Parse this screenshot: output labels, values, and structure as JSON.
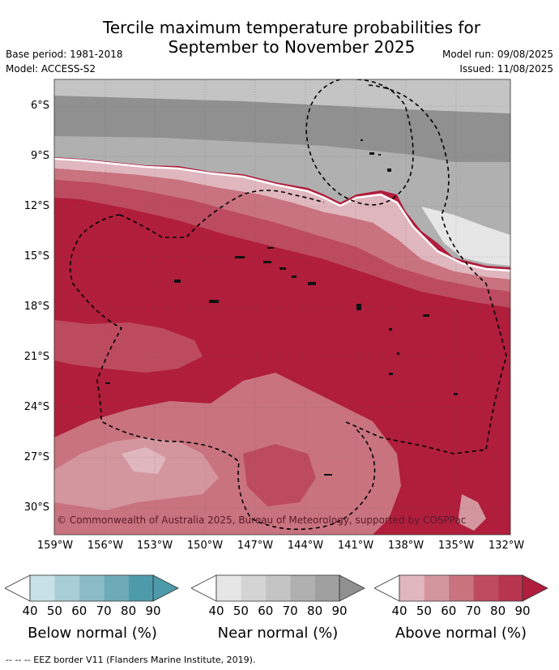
{
  "title": {
    "line1": "Tercile maximum temperature probabilities for",
    "line2": "September to November 2025"
  },
  "meta": {
    "base_period": "Base period: 1981-2018",
    "model": "Model: ACCESS-S2",
    "model_run": "Model run: 09/08/2025",
    "issued": "Issued: 11/08/2025"
  },
  "map": {
    "lat_labels": [
      "6°S",
      "9°S",
      "12°S",
      "15°S",
      "18°S",
      "21°S",
      "24°S",
      "27°S",
      "30°S"
    ],
    "lon_labels": [
      "159°W",
      "156°W",
      "153°W",
      "150°W",
      "147°W",
      "144°W",
      "141°W",
      "138°W",
      "135°W",
      "132°W"
    ],
    "copyright": "© Commonwealth of Australia 2025, Bureau of Meteorology, supported by COSPPac",
    "colors": {
      "above": [
        "#e0b7be",
        "#d4969e",
        "#c9737f",
        "#bd4b5f",
        "#b01e3c"
      ],
      "near": [
        "#e6e6e6",
        "#d4d4d4",
        "#c4c4c4",
        "#b0b0b0",
        "#909090"
      ],
      "below": [
        "#c8e1e6",
        "#a9cdd4",
        "#8bbcc6",
        "#6eabb8",
        "#4d9baa"
      ]
    }
  },
  "colorbars": [
    {
      "label": "Below normal (%)",
      "ticks": [
        "40",
        "50",
        "60",
        "70",
        "80",
        "90"
      ]
    },
    {
      "label": "Near normal (%)",
      "ticks": [
        "40",
        "50",
        "60",
        "70",
        "80",
        "90"
      ]
    },
    {
      "label": "Above normal (%)",
      "ticks": [
        "40",
        "50",
        "60",
        "70",
        "80",
        "90"
      ]
    }
  ],
  "footer": "--  --  -- EEZ border V11 (Flanders Marine Institute, 2019)."
}
